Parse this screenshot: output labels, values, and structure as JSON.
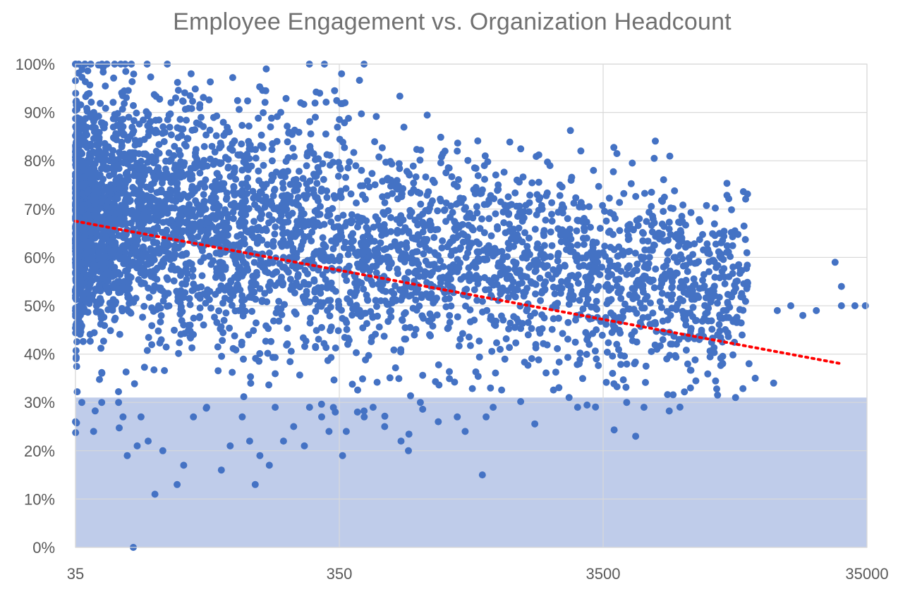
{
  "chart_data": {
    "type": "scatter",
    "title": "Employee Engagement vs. Organization Headcount",
    "xlabel": "",
    "ylabel": "",
    "x_scale": "log",
    "xlim": [
      35,
      35000
    ],
    "ylim": [
      0,
      1
    ],
    "x_ticks": [
      "35",
      "350",
      "3500",
      "35000"
    ],
    "y_ticks": [
      "0%",
      "10%",
      "20%",
      "30%",
      "40%",
      "50%",
      "60%",
      "70%",
      "80%",
      "90%",
      "100%"
    ],
    "grid": true,
    "legend": "none",
    "colors": {
      "points": "#4472C4",
      "trendline": "#FF0000",
      "shaded_band": "#B4C3E6"
    },
    "shaded_band": {
      "y_from": 0,
      "y_to": 0.31
    },
    "trendline": {
      "style": "dotted",
      "x": [
        35,
        28000
      ],
      "y": [
        0.675,
        0.38
      ]
    },
    "series": [
      {
        "points": [
          [
            35,
            1.0
          ],
          [
            36,
            1.0
          ],
          [
            38,
            1.0
          ],
          [
            40,
            1.0
          ],
          [
            52,
            1.0
          ],
          [
            54,
            1.0
          ],
          [
            57,
            1.0
          ],
          [
            78,
            1.0
          ],
          [
            35,
            0.26
          ],
          [
            37,
            0.3
          ],
          [
            41,
            0.24
          ],
          [
            44,
            0.3
          ],
          [
            51,
            0.3
          ],
          [
            53,
            0.27
          ],
          [
            55,
            0.19
          ],
          [
            60,
            0.21
          ],
          [
            62,
            0.27
          ],
          [
            66,
            0.22
          ],
          [
            70,
            0.11
          ],
          [
            58,
            0.0
          ],
          [
            75,
            0.2
          ],
          [
            85,
            0.13
          ],
          [
            90,
            0.17
          ],
          [
            98,
            0.27
          ],
          [
            110,
            0.29
          ],
          [
            125,
            0.16
          ],
          [
            135,
            0.21
          ],
          [
            150,
            0.27
          ],
          [
            168,
            0.13
          ],
          [
            160,
            0.22
          ],
          [
            175,
            0.19
          ],
          [
            190,
            0.17
          ],
          [
            200,
            0.29
          ],
          [
            215,
            0.22
          ],
          [
            235,
            0.25
          ],
          [
            258,
            0.21
          ],
          [
            270,
            0.29
          ],
          [
            300,
            0.27
          ],
          [
            320,
            0.24
          ],
          [
            338,
            0.28
          ],
          [
            360,
            0.19
          ],
          [
            372,
            0.24
          ],
          [
            410,
            0.28
          ],
          [
            435,
            0.27
          ],
          [
            470,
            0.29
          ],
          [
            520,
            0.25
          ],
          [
            600,
            0.22
          ],
          [
            640,
            0.2
          ],
          [
            710,
            0.3
          ],
          [
            830,
            0.26
          ],
          [
            980,
            0.27
          ],
          [
            1220,
            0.15
          ],
          [
            1260,
            0.27
          ],
          [
            1340,
            0.29
          ],
          [
            1050,
            0.24
          ],
          [
            2600,
            0.31
          ],
          [
            2800,
            0.29
          ],
          [
            4300,
            0.3
          ],
          [
            4650,
            0.23
          ],
          [
            5000,
            0.29
          ],
          [
            96,
            0.98
          ],
          [
            185,
            0.99
          ],
          [
            357,
            0.98
          ],
          [
            295,
            0.94
          ],
          [
            368,
            0.92
          ],
          [
            250,
            0.92
          ],
          [
            9800,
            0.63
          ],
          [
            26500,
            0.59
          ],
          [
            28000,
            0.54
          ],
          [
            31500,
            0.5
          ],
          [
            34500,
            0.5
          ],
          [
            22500,
            0.49
          ],
          [
            20000,
            0.48
          ],
          [
            16000,
            0.49
          ],
          [
            15500,
            0.34
          ],
          [
            13200,
            0.35
          ],
          [
            12500,
            0.38
          ],
          [
            10500,
            0.56
          ],
          [
            10000,
            0.49
          ],
          [
            9500,
            0.44
          ],
          [
            8100,
            0.43
          ],
          [
            7500,
            0.33
          ],
          [
            7200,
            0.46
          ],
          [
            7100,
            0.54
          ],
          [
            6500,
            0.6
          ],
          [
            6400,
            0.55
          ],
          [
            6300,
            0.48
          ],
          [
            6100,
            0.39
          ],
          [
            5600,
            0.41
          ],
          [
            5300,
            0.55
          ],
          [
            4800,
            0.68
          ],
          [
            5000,
            0.6
          ],
          [
            4600,
            0.38
          ],
          [
            3800,
            0.36
          ],
          [
            3500,
            0.61
          ],
          [
            3300,
            0.39
          ],
          [
            3100,
            0.42
          ],
          [
            2200,
            0.79
          ],
          [
            2000,
            0.72
          ],
          [
            1650,
            0.76
          ],
          [
            1400,
            0.75
          ],
          [
            1250,
            0.81
          ],
          [
            980,
            0.82
          ],
          [
            880,
            0.82
          ],
          [
            1500,
            0.7
          ],
          [
            2400,
            0.75
          ],
          [
            28000,
            0.5
          ],
          [
            18000,
            0.5
          ]
        ]
      }
    ]
  }
}
